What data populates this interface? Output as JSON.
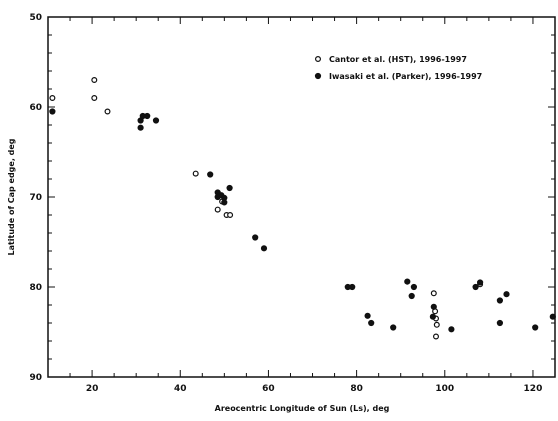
{
  "chart_data": {
    "type": "scatter",
    "xlabel": "Areocentric Longitude of Sun (Ls), deg",
    "ylabel": "Latitude of Cap edge, deg",
    "xlim": [
      10,
      125
    ],
    "ylim": [
      50,
      90
    ],
    "y_inverted": true,
    "x_ticks": [
      20,
      40,
      60,
      80,
      100,
      120
    ],
    "y_ticks": [
      50,
      60,
      70,
      80,
      90
    ],
    "legend_position": "top-right",
    "grid": false,
    "series": [
      {
        "name": "Cantor et al. (HST), 1996-1997",
        "marker": "open-circle",
        "color": "#111111",
        "points": [
          [
            11,
            59
          ],
          [
            20.5,
            57
          ],
          [
            20.5,
            59
          ],
          [
            23.5,
            60.5
          ],
          [
            43.5,
            67.4
          ],
          [
            48.5,
            71.4
          ],
          [
            49.5,
            70.5
          ],
          [
            50.5,
            72
          ],
          [
            51.3,
            72
          ],
          [
            97.5,
            80.7
          ],
          [
            97.8,
            82.7
          ],
          [
            98,
            83.5
          ],
          [
            98.2,
            84.2
          ],
          [
            98,
            85.5
          ],
          [
            108,
            79.7
          ]
        ]
      },
      {
        "name": "Iwasaki et al. (Parker), 1996-1997",
        "marker": "filled-circle",
        "color": "#111111",
        "points": [
          [
            11,
            60.5
          ],
          [
            31,
            61.5
          ],
          [
            31.5,
            61
          ],
          [
            32.5,
            61
          ],
          [
            34.5,
            61.5
          ],
          [
            31,
            62.3
          ],
          [
            46.8,
            67.5
          ],
          [
            51.2,
            69
          ],
          [
            48.5,
            69.5
          ],
          [
            48.5,
            70
          ],
          [
            49.3,
            69.8
          ],
          [
            50,
            70.1
          ],
          [
            50,
            70.6
          ],
          [
            57,
            74.5
          ],
          [
            59,
            75.7
          ],
          [
            78,
            80
          ],
          [
            79,
            80
          ],
          [
            82.5,
            83.2
          ],
          [
            83.3,
            84
          ],
          [
            88.3,
            84.5
          ],
          [
            91.5,
            79.4
          ],
          [
            92.5,
            81
          ],
          [
            93,
            80
          ],
          [
            97.5,
            82.2
          ],
          [
            97.3,
            83.3
          ],
          [
            101.5,
            84.7
          ],
          [
            107,
            80
          ],
          [
            108,
            79.5
          ],
          [
            112.5,
            81.5
          ],
          [
            114,
            80.8
          ],
          [
            112.5,
            84
          ],
          [
            120.5,
            84.5
          ],
          [
            124.5,
            83.3
          ]
        ]
      }
    ]
  }
}
